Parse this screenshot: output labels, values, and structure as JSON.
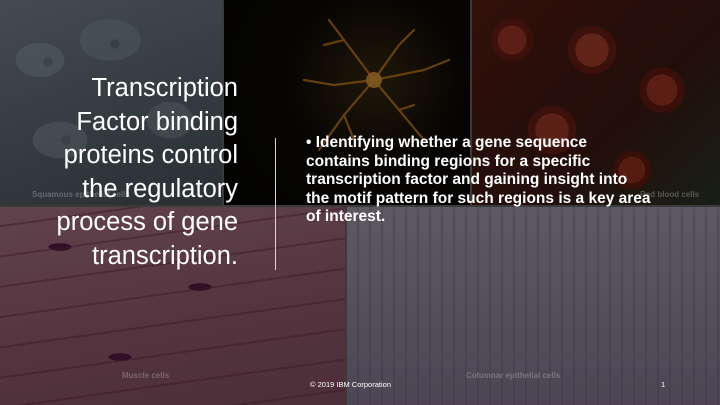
{
  "slide": {
    "title": "Transcription Factor binding proteins control the regulatory process of gene transcription.",
    "body": "• Identifying whether a gene sequence contains binding regions for a specific transcription factor and gaining insight into the motif pattern for such regions is a key area of interest.",
    "footer": "© 2019 IBM Corporation",
    "page_number": "1"
  },
  "background": {
    "captions": {
      "squamous": "Squamous epithelial cells",
      "blood": "Red blood cells",
      "muscle": "Muscle cells",
      "columnar": "Columnar epithelial cells"
    }
  },
  "colors": {
    "text": "#ffffff",
    "divider": "#d6d6d6",
    "overlay": "rgba(0,0,0,0.45)"
  }
}
